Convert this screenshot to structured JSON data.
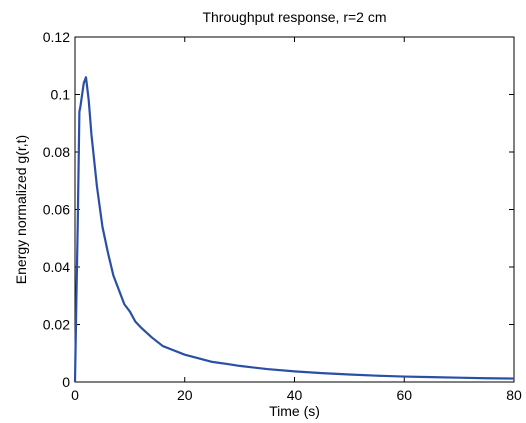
{
  "chart_data": {
    "type": "line",
    "title": "Throughput response, r=2 cm",
    "xlabel": "Time (s)",
    "ylabel": "Energy normalized g(r,t)",
    "xlim": [
      0,
      80
    ],
    "ylim": [
      0,
      0.12
    ],
    "xticks": [
      0,
      20,
      40,
      60,
      80
    ],
    "yticks": [
      0,
      0.02,
      0.04,
      0.06,
      0.08,
      0.1,
      0.12
    ],
    "xtick_labels": [
      "0",
      "20",
      "40",
      "60",
      "80"
    ],
    "ytick_labels": [
      "0",
      "0.02",
      "0.04",
      "0.06",
      "0.08",
      "0.1",
      "0.12"
    ],
    "grid": false,
    "legend": "none",
    "series": [
      {
        "color": "#2a4fa8",
        "x": [
          0,
          0.2,
          0.5,
          0.8,
          1.0,
          1.3,
          1.6,
          2.0,
          2.5,
          3.0,
          4.0,
          5.0,
          6.0,
          7.0,
          8.0,
          9.0,
          10.0,
          11.0,
          12.0,
          14.0,
          16.0,
          18.0,
          20.0,
          22.0,
          25.0,
          28.0,
          30.0,
          35.0,
          40.0,
          45.0,
          50.0,
          55.0,
          60.0,
          65.0,
          70.0,
          75.0,
          80.0
        ],
        "y": [
          0,
          0.023,
          0.055,
          0.094,
          0.096,
          0.1,
          0.104,
          0.106,
          0.098,
          0.086,
          0.068,
          0.054,
          0.045,
          0.037,
          0.032,
          0.027,
          0.0245,
          0.021,
          0.019,
          0.0155,
          0.0125,
          0.011,
          0.0095,
          0.0085,
          0.007,
          0.0062,
          0.0056,
          0.0045,
          0.0037,
          0.0031,
          0.0026,
          0.0022,
          0.0019,
          0.0017,
          0.0015,
          0.0013,
          0.0012
        ]
      }
    ]
  }
}
